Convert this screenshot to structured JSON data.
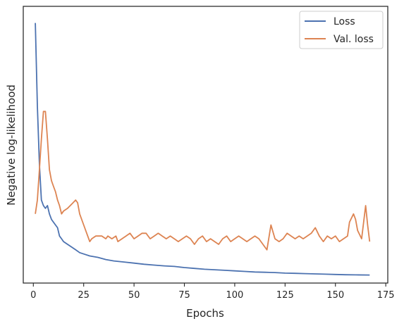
{
  "chart_data": {
    "type": "line",
    "xlabel": "Epochs",
    "ylabel": "Negative log-likelihood",
    "xlim": [
      -5,
      176
    ],
    "ylim": [
      0,
      100
    ],
    "xticks": [
      0,
      25,
      50,
      75,
      100,
      125,
      150,
      175
    ],
    "yticks_labeled": false,
    "grid": false,
    "legend_position": "top-right",
    "series": [
      {
        "name": "Loss",
        "color": "#4c72b0",
        "points": [
          [
            1,
            94
          ],
          [
            2,
            64
          ],
          [
            3,
            43
          ],
          [
            4,
            30
          ],
          [
            5,
            28
          ],
          [
            6,
            27
          ],
          [
            7,
            28
          ],
          [
            8,
            25
          ],
          [
            9,
            23
          ],
          [
            10,
            22
          ],
          [
            11,
            21
          ],
          [
            12,
            20
          ],
          [
            13,
            17
          ],
          [
            14,
            16
          ],
          [
            15,
            15
          ],
          [
            17,
            14
          ],
          [
            19,
            13
          ],
          [
            21,
            12
          ],
          [
            23,
            11
          ],
          [
            25,
            10.5
          ],
          [
            28,
            9.8
          ],
          [
            32,
            9.3
          ],
          [
            36,
            8.5
          ],
          [
            40,
            8.0
          ],
          [
            45,
            7.6
          ],
          [
            50,
            7.2
          ],
          [
            55,
            6.8
          ],
          [
            60,
            6.5
          ],
          [
            65,
            6.2
          ],
          [
            70,
            6.0
          ],
          [
            75,
            5.6
          ],
          [
            80,
            5.3
          ],
          [
            85,
            5.0
          ],
          [
            90,
            4.8
          ],
          [
            95,
            4.6
          ],
          [
            100,
            4.4
          ],
          [
            105,
            4.2
          ],
          [
            110,
            4.0
          ],
          [
            115,
            3.9
          ],
          [
            120,
            3.8
          ],
          [
            125,
            3.6
          ],
          [
            130,
            3.5
          ],
          [
            135,
            3.4
          ],
          [
            140,
            3.3
          ],
          [
            145,
            3.2
          ],
          [
            150,
            3.1
          ],
          [
            155,
            3.0
          ],
          [
            160,
            2.95
          ],
          [
            167,
            2.9
          ]
        ]
      },
      {
        "name": "Val. loss",
        "color": "#dd8452",
        "points": [
          [
            1,
            25
          ],
          [
            2,
            30
          ],
          [
            3,
            41
          ],
          [
            4,
            52
          ],
          [
            5,
            62
          ],
          [
            6,
            62
          ],
          [
            7,
            52
          ],
          [
            8,
            41
          ],
          [
            9,
            37
          ],
          [
            10,
            35
          ],
          [
            11,
            33
          ],
          [
            12,
            30
          ],
          [
            13,
            28
          ],
          [
            14,
            25
          ],
          [
            15,
            26
          ],
          [
            17,
            27
          ],
          [
            19,
            28.5
          ],
          [
            21,
            30
          ],
          [
            22,
            29
          ],
          [
            23,
            25
          ],
          [
            25,
            21
          ],
          [
            27,
            17
          ],
          [
            28,
            15
          ],
          [
            29,
            16
          ],
          [
            31,
            17
          ],
          [
            34,
            17
          ],
          [
            36,
            16
          ],
          [
            37,
            17
          ],
          [
            39,
            16
          ],
          [
            41,
            17
          ],
          [
            42,
            15
          ],
          [
            44,
            16
          ],
          [
            46,
            17
          ],
          [
            48,
            18
          ],
          [
            50,
            16
          ],
          [
            52,
            17
          ],
          [
            54,
            18
          ],
          [
            56,
            18
          ],
          [
            58,
            16
          ],
          [
            60,
            17
          ],
          [
            62,
            18
          ],
          [
            64,
            17
          ],
          [
            66,
            16
          ],
          [
            68,
            17
          ],
          [
            70,
            16
          ],
          [
            72,
            15
          ],
          [
            74,
            16
          ],
          [
            76,
            17
          ],
          [
            78,
            16
          ],
          [
            80,
            14
          ],
          [
            82,
            16
          ],
          [
            84,
            17
          ],
          [
            86,
            15
          ],
          [
            88,
            16
          ],
          [
            90,
            15
          ],
          [
            92,
            14
          ],
          [
            94,
            16
          ],
          [
            96,
            17
          ],
          [
            98,
            15
          ],
          [
            100,
            16
          ],
          [
            102,
            17
          ],
          [
            104,
            16
          ],
          [
            106,
            15
          ],
          [
            108,
            16
          ],
          [
            110,
            17
          ],
          [
            112,
            16
          ],
          [
            114,
            14
          ],
          [
            116,
            12
          ],
          [
            118,
            21
          ],
          [
            120,
            16
          ],
          [
            122,
            15
          ],
          [
            124,
            16
          ],
          [
            126,
            18
          ],
          [
            128,
            17
          ],
          [
            130,
            16
          ],
          [
            132,
            17
          ],
          [
            134,
            16
          ],
          [
            136,
            17
          ],
          [
            138,
            18
          ],
          [
            140,
            20
          ],
          [
            142,
            17
          ],
          [
            144,
            15
          ],
          [
            146,
            17
          ],
          [
            148,
            16
          ],
          [
            150,
            17
          ],
          [
            152,
            15
          ],
          [
            154,
            16
          ],
          [
            156,
            17
          ],
          [
            157,
            22
          ],
          [
            159,
            25
          ],
          [
            160,
            23
          ],
          [
            161,
            19
          ],
          [
            163,
            16
          ],
          [
            165,
            28
          ],
          [
            166,
            21
          ],
          [
            167,
            15
          ]
        ]
      }
    ]
  }
}
